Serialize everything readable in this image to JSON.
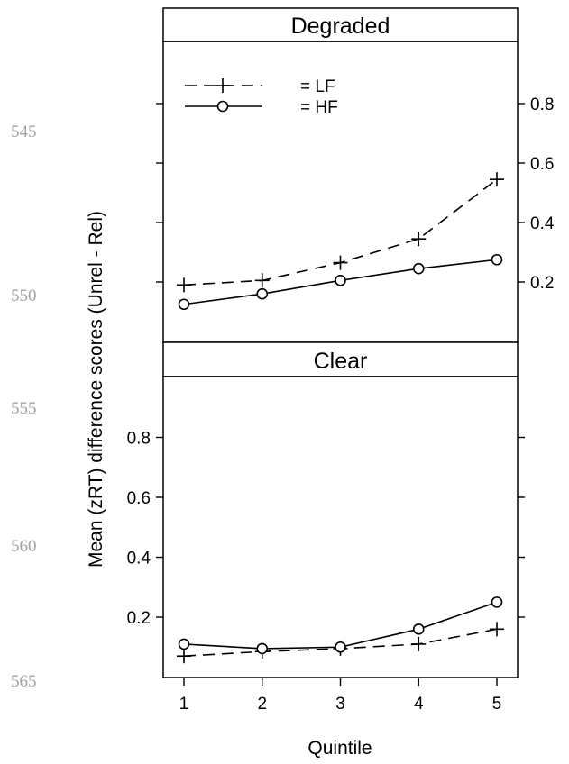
{
  "line_numbers": [
    "545",
    "550",
    "555",
    "560",
    "565"
  ],
  "chart_data": {
    "type": "line",
    "xlabel": "Quintile",
    "ylabel": "Mean (zRT) difference scores (Unrel - Rel)",
    "x": [
      1,
      2,
      3,
      4,
      5
    ],
    "x_ticks": [
      "1",
      "2",
      "3",
      "4",
      "5"
    ],
    "y_ticks": [
      "0.2",
      "0.4",
      "0.6",
      "0.8"
    ],
    "ylim": [
      0.0,
      1.05
    ],
    "grid": false,
    "legend": {
      "placement": "top-left of top panel",
      "entries": [
        {
          "label": "= LF",
          "series": "LF",
          "marker": "plus",
          "line": "dashed"
        },
        {
          "label": "= HF",
          "series": "HF",
          "marker": "circle",
          "line": "solid"
        }
      ]
    },
    "panels": [
      {
        "title": "Degraded",
        "y_axis_side": "right",
        "series": [
          {
            "name": "LF",
            "marker": "plus",
            "line": "dashed",
            "values": [
              0.19,
              0.205,
              0.265,
              0.345,
              0.545
            ]
          },
          {
            "name": "HF",
            "marker": "circle",
            "line": "solid",
            "values": [
              0.125,
              0.16,
              0.205,
              0.245,
              0.275
            ]
          }
        ]
      },
      {
        "title": "Clear",
        "y_axis_side": "left",
        "series": [
          {
            "name": "LF",
            "marker": "plus",
            "line": "dashed",
            "values": [
              0.07,
              0.085,
              0.095,
              0.11,
              0.16
            ]
          },
          {
            "name": "HF",
            "marker": "circle",
            "line": "solid",
            "values": [
              0.11,
              0.095,
              0.1,
              0.16,
              0.25
            ]
          }
        ]
      }
    ]
  }
}
